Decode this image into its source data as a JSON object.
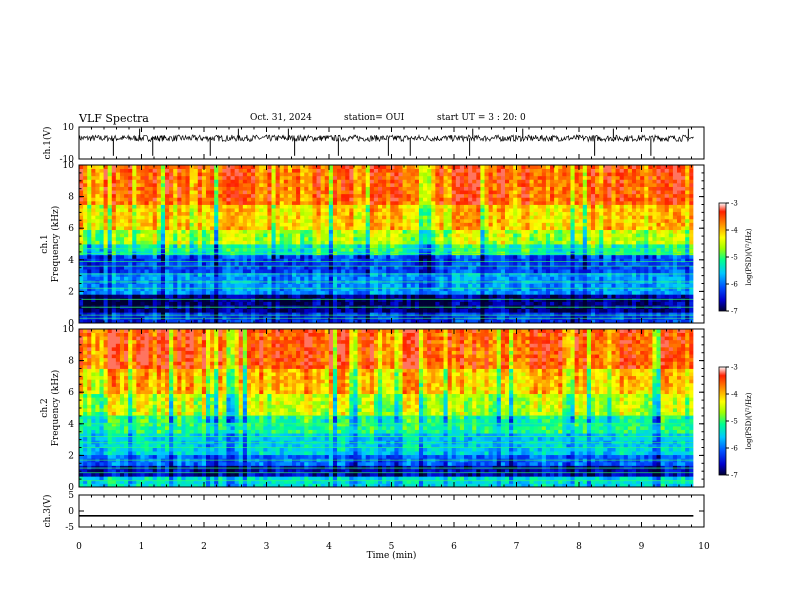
{
  "header": {
    "title": "VLF Spectra",
    "date": "Oct. 31, 2024",
    "station": "station= OUI",
    "start_ut": "start UT = 3 : 20: 0"
  },
  "chart_data": [
    {
      "type": "line",
      "name": "waveform-ch1",
      "ylabel": "ch.1(V)",
      "ylim": [
        -10,
        10
      ],
      "yticks": [
        "10",
        "-10"
      ],
      "xlim": [
        0,
        10
      ],
      "x_extent": 9.83,
      "baseline_value": 3,
      "description_values": {
        "typical_min": 1,
        "typical_max": 5,
        "spike_min": -10,
        "spike_max": 10
      },
      "spike_times_min": [
        0.55,
        0.97,
        1.18,
        2.1,
        2.55,
        3.35,
        3.45,
        4.15,
        4.95,
        5.3,
        6.25,
        6.3,
        7.1,
        8.25,
        8.55,
        9.15,
        9.75
      ]
    },
    {
      "type": "heatmap",
      "name": "spectrogram-ch1",
      "ylabel": "ch.1",
      "ylabel2": "Frequency (kHz)",
      "ylim": [
        0,
        10
      ],
      "yticks": [
        "0",
        "2",
        "4",
        "6",
        "8",
        "10"
      ],
      "xlim": [
        0,
        10
      ],
      "x_extent": 9.83,
      "colorbar": {
        "label": "log(PSD)(V²/Hz)",
        "range": [
          -7,
          -3
        ],
        "ticks": [
          "-3",
          "-4",
          "-5",
          "-6",
          "-7"
        ]
      },
      "band_levels": [
        {
          "fmin": 0,
          "fmax": 0.6,
          "level": -6.3
        },
        {
          "fmin": 0.6,
          "fmax": 1.8,
          "level": -6.8
        },
        {
          "fmin": 1.8,
          "fmax": 3.2,
          "level": -5.8
        },
        {
          "fmin": 3.2,
          "fmax": 4.3,
          "level": -6.2
        },
        {
          "fmin": 4.3,
          "fmax": 5.0,
          "level": -5.2
        },
        {
          "fmin": 5.0,
          "fmax": 6.0,
          "level": -4.6
        },
        {
          "fmin": 6.0,
          "fmax": 7.5,
          "level": -4.1
        },
        {
          "fmin": 7.5,
          "fmax": 10,
          "level": -3.6
        }
      ],
      "hline_freqs_khz": [
        0.3,
        0.5,
        1.0,
        1.5,
        2.2,
        2.6,
        3.1,
        3.6,
        3.9,
        4.4,
        4.7
      ]
    },
    {
      "type": "heatmap",
      "name": "spectrogram-ch2",
      "ylabel": "ch.2",
      "ylabel2": "Frequency (kHz)",
      "ylim": [
        0,
        10
      ],
      "yticks": [
        "0",
        "2",
        "4",
        "6",
        "8",
        "10"
      ],
      "xlim": [
        0,
        10
      ],
      "x_extent": 9.83,
      "colorbar": {
        "label": "log(PSD)(V²/Hz)",
        "range": [
          -7,
          -3
        ],
        "ticks": [
          "-3",
          "-4",
          "-5",
          "-6",
          "-7"
        ]
      },
      "band_levels": [
        {
          "fmin": 0,
          "fmax": 0.7,
          "level": -5.4
        },
        {
          "fmin": 0.7,
          "fmax": 1.4,
          "level": -6.6
        },
        {
          "fmin": 1.4,
          "fmax": 2.0,
          "level": -6.0
        },
        {
          "fmin": 2.0,
          "fmax": 3.4,
          "level": -5.5
        },
        {
          "fmin": 3.4,
          "fmax": 4.6,
          "level": -5.1
        },
        {
          "fmin": 4.6,
          "fmax": 6.0,
          "level": -4.5
        },
        {
          "fmin": 6.0,
          "fmax": 7.5,
          "level": -4.0
        },
        {
          "fmin": 7.5,
          "fmax": 10,
          "level": -3.5
        }
      ],
      "hline_freqs_khz": [
        0.4,
        0.9,
        1.2,
        1.7,
        2.5,
        2.8,
        3.2,
        4.0,
        4.5
      ]
    },
    {
      "type": "line",
      "name": "waveform-ch3",
      "ylabel": "ch.3(V)",
      "ylim": [
        -5,
        5
      ],
      "yticks": [
        "5",
        "0",
        "-5"
      ],
      "xlim": [
        0,
        10
      ],
      "x_extent": 9.83,
      "constant_value": -1.5
    }
  ],
  "xaxis": {
    "label": "Time (min)",
    "ticks": [
      "0",
      "1",
      "2",
      "3",
      "4",
      "5",
      "6",
      "7",
      "8",
      "9",
      "10"
    ]
  },
  "colors": {
    "colormap": [
      "#000033",
      "#0000cc",
      "#0050ff",
      "#00c8ff",
      "#00ff90",
      "#a0ff00",
      "#ffff00",
      "#ff9000",
      "#ff2000",
      "#ffffff"
    ]
  }
}
